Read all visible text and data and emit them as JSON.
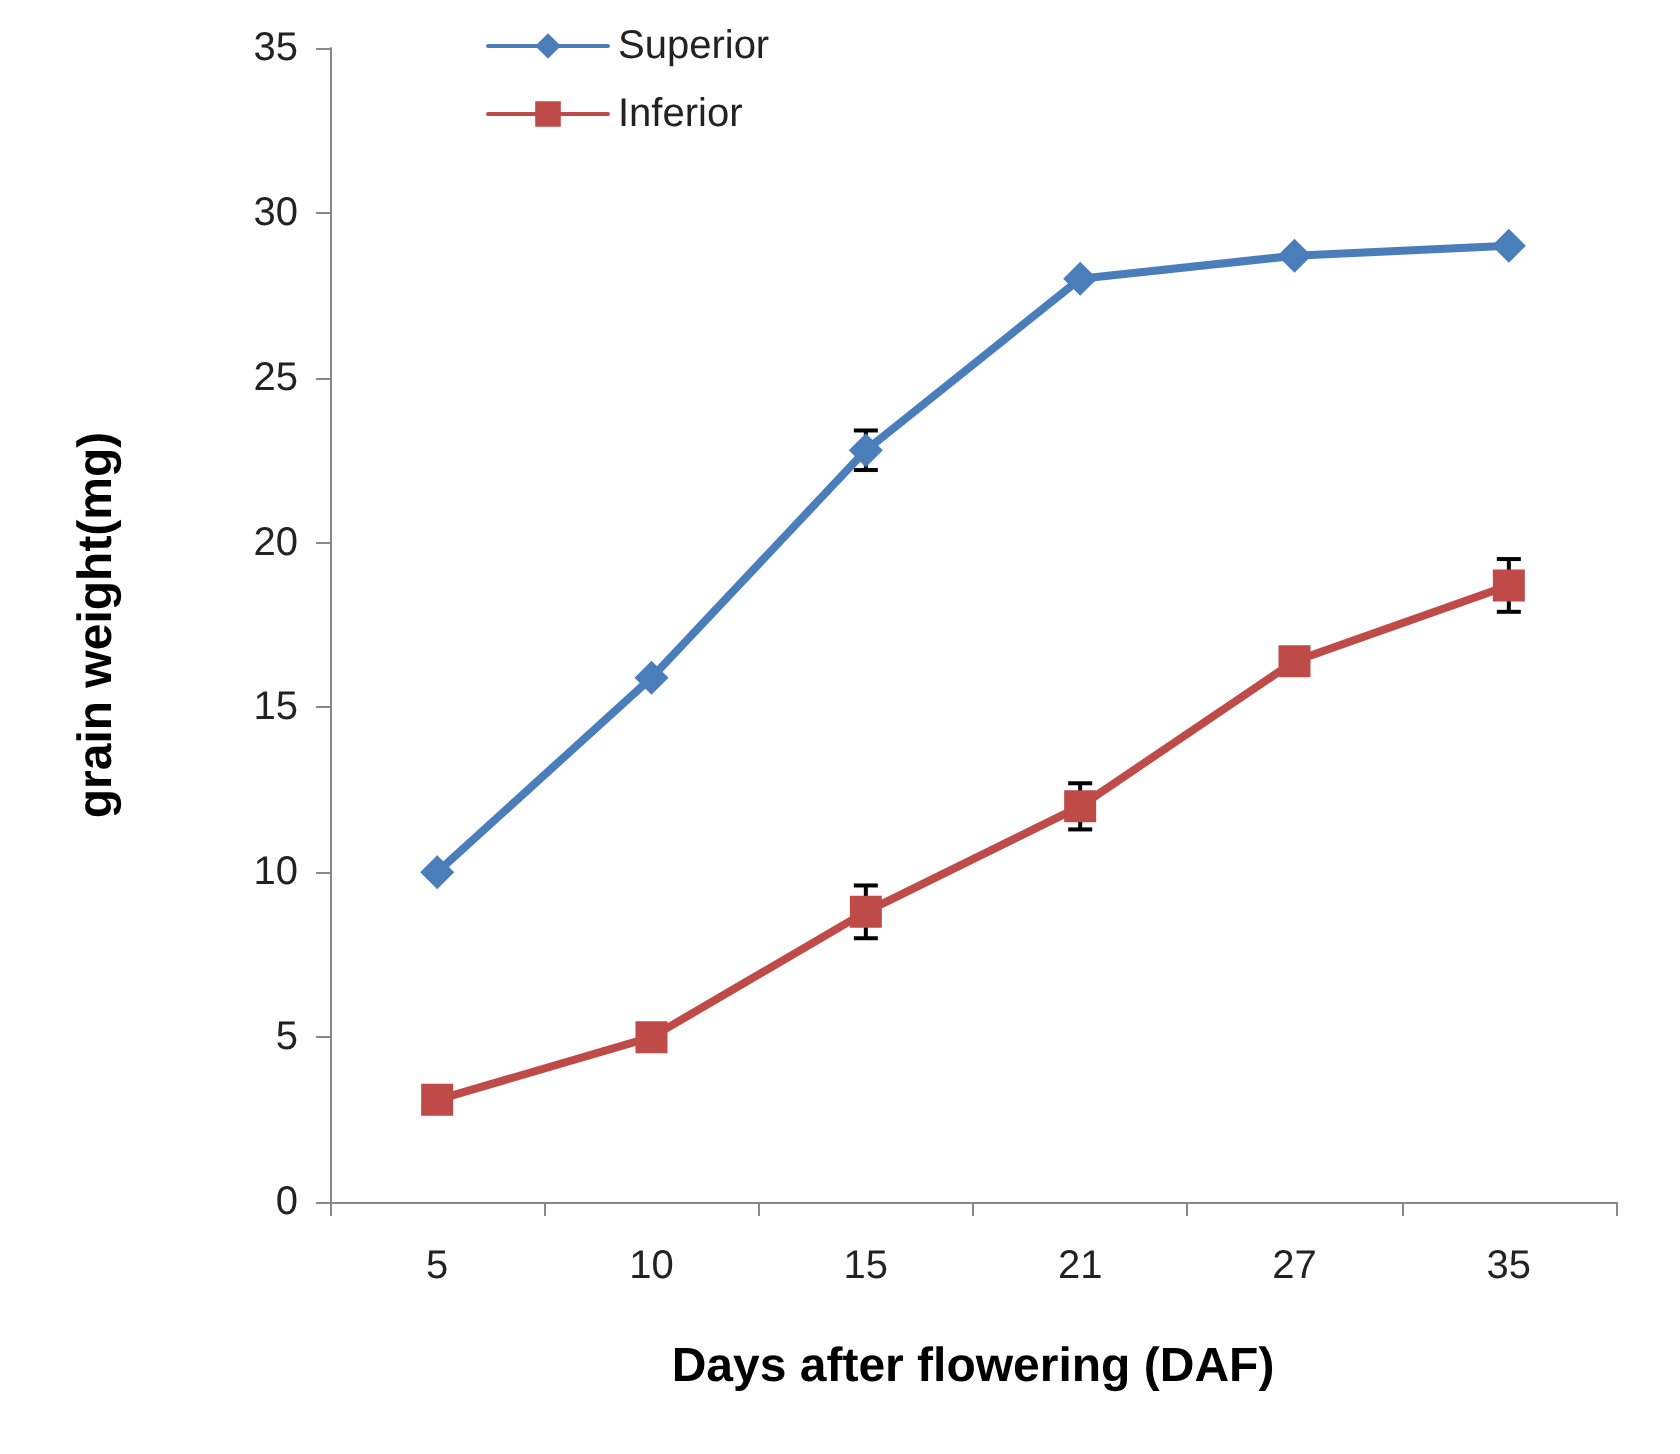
{
  "chart_data": {
    "type": "line",
    "xlabel": "Days after flowering (DAF)",
    "ylabel": "grain weight(mg)",
    "categories": [
      "5",
      "10",
      "15",
      "21",
      "27",
      "35"
    ],
    "series": [
      {
        "name": "Superior",
        "color": "#4a7ebb",
        "marker": "diamond",
        "values": [
          10,
          15.9,
          22.8,
          28.0,
          28.7,
          29.0
        ],
        "errors": [
          null,
          null,
          0.6,
          null,
          null,
          null
        ]
      },
      {
        "name": "Inferior",
        "color": "#be4b48",
        "marker": "square",
        "values": [
          3.1,
          5.0,
          8.8,
          12.0,
          16.4,
          18.7
        ],
        "errors": [
          null,
          null,
          0.8,
          0.7,
          null,
          0.8
        ]
      }
    ],
    "ylim": [
      0,
      35
    ],
    "yticks": [
      0,
      5,
      10,
      15,
      20,
      25,
      30,
      35
    ],
    "grid": false,
    "legend": "top left",
    "line_style": "solid"
  }
}
